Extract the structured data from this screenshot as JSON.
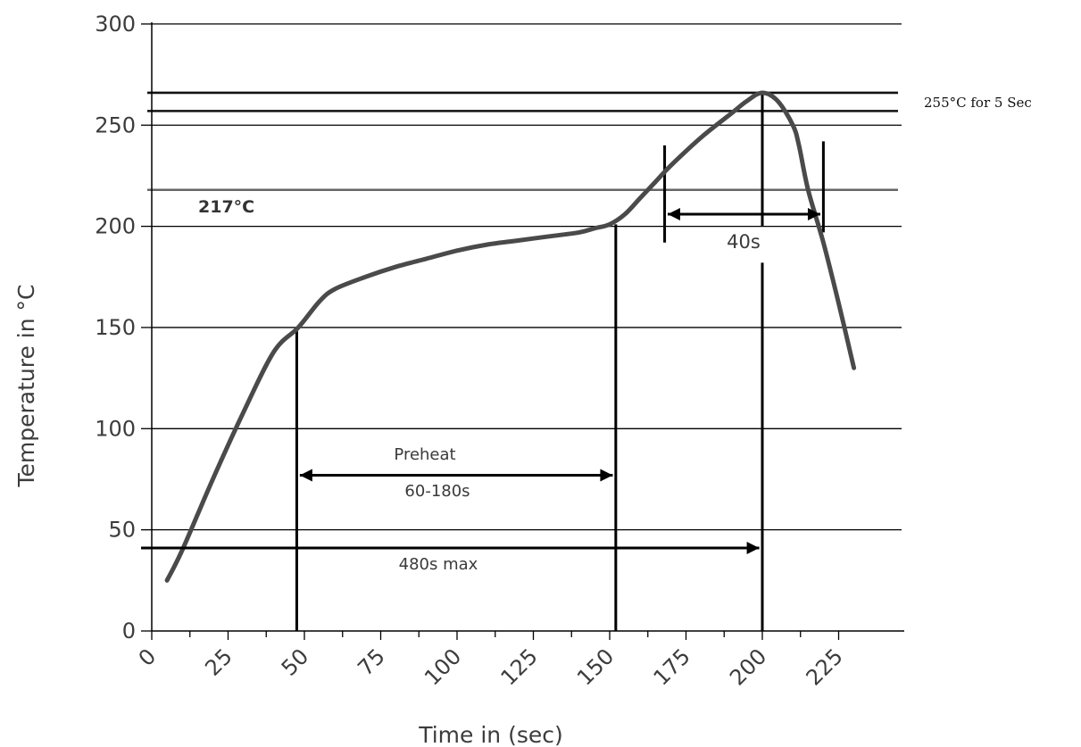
{
  "chart_data": {
    "type": "line",
    "title": "",
    "xlabel": "Time in (sec)",
    "ylabel": "Temperature in °C",
    "xlim": [
      0,
      236
    ],
    "ylim": [
      0,
      300
    ],
    "x_ticks": [
      0,
      25,
      50,
      75,
      100,
      125,
      150,
      175,
      200,
      225
    ],
    "x_tick_labels": [
      "0",
      "25",
      "50",
      "75",
      "100",
      "125",
      "150",
      "175",
      "200",
      "225"
    ],
    "y_ticks": [
      0,
      50,
      100,
      150,
      200,
      250,
      300
    ],
    "y_tick_labels": [
      "0",
      "50",
      "100",
      "150",
      "200",
      "250",
      "300"
    ],
    "grid": "horizontal",
    "series": [
      {
        "color": "#4a4a4a",
        "x": [
          5,
          10,
          20,
          30,
          40,
          48,
          55,
          60,
          70,
          80,
          90,
          100,
          110,
          120,
          130,
          140,
          145,
          150,
          155,
          160,
          165,
          170,
          180,
          190,
          195,
          200,
          205,
          210,
          212,
          215,
          220,
          225,
          230
        ],
        "y": [
          25,
          40,
          75,
          108,
          138,
          150,
          163,
          169,
          175,
          180,
          184,
          188,
          191,
          193,
          195,
          197,
          199,
          201,
          206,
          214,
          222,
          230,
          244,
          256,
          262,
          266,
          262,
          250,
          240,
          218,
          192,
          162,
          130
        ]
      }
    ],
    "reference_lines": [
      {
        "y": 266
      },
      {
        "y": 257
      },
      {
        "y": 218,
        "label": "217°C"
      }
    ],
    "annotations": {
      "peak_label": "255°C for 5 Sec",
      "preheat_label": "Preheat",
      "preheat_range": "60-180s",
      "liquidus_time": "40s",
      "max_time": "480s max"
    }
  }
}
